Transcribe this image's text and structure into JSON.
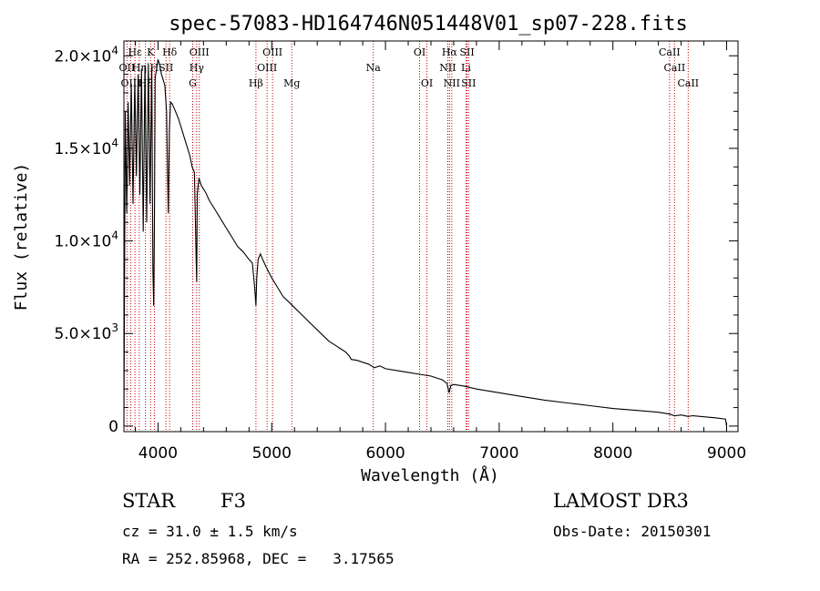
{
  "chart_data": {
    "type": "line",
    "title": "spec-57083-HD164746N051448V01_sp07-228.fits",
    "xlabel": "Wavelength (Å)",
    "ylabel": "Flux (relative)",
    "xlim": [
      3700,
      9100
    ],
    "ylim": [
      -300,
      20800
    ],
    "x_ticks": [
      {
        "value": 4000,
        "label": "4000"
      },
      {
        "value": 5000,
        "label": "5000"
      },
      {
        "value": 6000,
        "label": "6000"
      },
      {
        "value": 7000,
        "label": "7000"
      },
      {
        "value": 8000,
        "label": "8000"
      },
      {
        "value": 9000,
        "label": "9000"
      }
    ],
    "y_ticks": [
      {
        "value": 0,
        "label": "0",
        "exp": ""
      },
      {
        "value": 5000,
        "label": "5.0×10",
        "exp": "3"
      },
      {
        "value": 10000,
        "label": "1.0×10",
        "exp": "4"
      },
      {
        "value": 15000,
        "label": "1.5×10",
        "exp": "4"
      },
      {
        "value": 20000,
        "label": "2.0×10",
        "exp": "4"
      }
    ],
    "series": [
      {
        "name": "spectrum",
        "color": "#000000",
        "x": [
          3700,
          3712,
          3725,
          3738,
          3750,
          3765,
          3780,
          3795,
          3810,
          3825,
          3840,
          3855,
          3870,
          3885,
          3900,
          3915,
          3930,
          3945,
          3955,
          3962,
          3968,
          3975,
          3985,
          4000,
          4015,
          4030,
          4045,
          4060,
          4075,
          4090,
          4100,
          4110,
          4125,
          4140,
          4160,
          4180,
          4200,
          4220,
          4240,
          4260,
          4280,
          4300,
          4320,
          4335,
          4340,
          4345,
          4360,
          4380,
          4400,
          4420,
          4450,
          4500,
          4550,
          4600,
          4650,
          4700,
          4750,
          4800,
          4830,
          4850,
          4861,
          4868,
          4880,
          4900,
          4920,
          4950,
          5000,
          5050,
          5100,
          5150,
          5200,
          5250,
          5300,
          5350,
          5400,
          5450,
          5500,
          5550,
          5600,
          5650,
          5680,
          5700,
          5750,
          5800,
          5850,
          5890,
          5900,
          5950,
          6000,
          6100,
          6200,
          6300,
          6400,
          6500,
          6540,
          6560,
          6575,
          6600,
          6700,
          6800,
          7000,
          7200,
          7400,
          7600,
          7800,
          8000,
          8200,
          8400,
          8500,
          8542,
          8600,
          8662,
          8700,
          8800,
          8900,
          8990,
          9000
        ],
        "y": [
          0,
          17000,
          11500,
          17500,
          13000,
          18500,
          12000,
          18800,
          13500,
          19000,
          12500,
          19300,
          10500,
          19500,
          11000,
          19600,
          12000,
          19400,
          8500,
          6500,
          11000,
          18800,
          19200,
          19800,
          19500,
          19000,
          18700,
          18400,
          17000,
          11500,
          16000,
          17500,
          17400,
          17200,
          16900,
          16600,
          16200,
          15800,
          15400,
          15000,
          14600,
          14000,
          13700,
          9000,
          7800,
          12500,
          13400,
          13000,
          12800,
          12600,
          12200,
          11700,
          11200,
          10700,
          10200,
          9700,
          9400,
          9000,
          8800,
          7500,
          6500,
          8000,
          9000,
          9300,
          9000,
          8600,
          8000,
          7500,
          7000,
          6700,
          6400,
          6100,
          5800,
          5500,
          5200,
          4900,
          4600,
          4400,
          4200,
          4000,
          3800,
          3600,
          3550,
          3450,
          3350,
          3200,
          3150,
          3250,
          3100,
          3000,
          2900,
          2800,
          2700,
          2500,
          2300,
          1800,
          2200,
          2250,
          2150,
          2000,
          1800,
          1600,
          1400,
          1250,
          1100,
          950,
          850,
          750,
          650,
          550,
          600,
          520,
          560,
          500,
          450,
          380,
          0
        ]
      }
    ],
    "annotations": [
      {
        "label": "Hε",
        "x": 3797,
        "row": 1
      },
      {
        "label": "K",
        "x": 3934,
        "row": 1
      },
      {
        "label": "Hδ",
        "x": 4102,
        "row": 1
      },
      {
        "label": "OIII",
        "x": 4363,
        "row": 1
      },
      {
        "label": "OIII",
        "x": 5007,
        "row": 1
      },
      {
        "label": "OI",
        "x": 6300,
        "row": 1
      },
      {
        "label": "Hα",
        "x": 6563,
        "row": 1
      },
      {
        "label": "SII",
        "x": 6717,
        "row": 1
      },
      {
        "label": "CaII",
        "x": 8498,
        "row": 1
      },
      {
        "label": "OII",
        "x": 3727,
        "row": 2
      },
      {
        "label": "Hη",
        "x": 3835,
        "row": 2
      },
      {
        "label": "H",
        "x": 3968,
        "row": 2
      },
      {
        "label": "SII",
        "x": 4070,
        "row": 2
      },
      {
        "label": "Hγ",
        "x": 4340,
        "row": 2
      },
      {
        "label": "OIII",
        "x": 4959,
        "row": 2
      },
      {
        "label": "Na",
        "x": 5893,
        "row": 2
      },
      {
        "label": "NII",
        "x": 6548,
        "row": 2
      },
      {
        "label": "Li",
        "x": 6708,
        "row": 2
      },
      {
        "label": "CaII",
        "x": 8542,
        "row": 2
      },
      {
        "label": "OIII",
        "x": 3760,
        "row": 3
      },
      {
        "label": "Hξ",
        "x": 3889,
        "row": 3
      },
      {
        "label": "G",
        "x": 4305,
        "row": 3
      },
      {
        "label": "Hβ",
        "x": 4861,
        "row": 3
      },
      {
        "label": "Mg",
        "x": 5176,
        "row": 3
      },
      {
        "label": "OI",
        "x": 6364,
        "row": 3
      },
      {
        "label": "NII",
        "x": 6583,
        "row": 3
      },
      {
        "label": "SII",
        "x": 6731,
        "row": 3
      },
      {
        "label": "CaII",
        "x": 8662,
        "row": 3
      }
    ]
  },
  "info": {
    "object_class": "STAR",
    "subclass": "F3",
    "survey": "LAMOST DR3",
    "redshift": "cz = 31.0 ± 1.5 km/s",
    "obs_date": "Obs-Date: 20150301",
    "coords": "RA = 252.85968, DEC =   3.17565"
  }
}
